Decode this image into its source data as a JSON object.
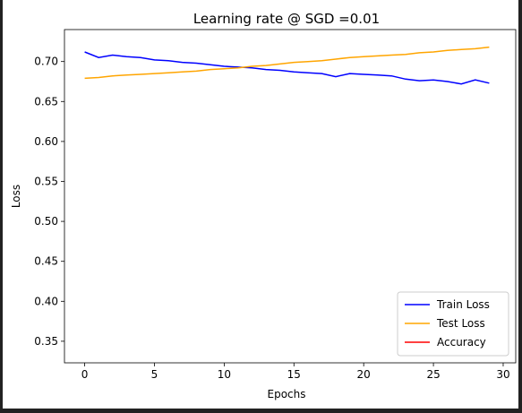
{
  "chart_data": {
    "type": "line",
    "title": "Learning rate @ SGD  =0.01",
    "x_label": "Epochs",
    "y_label": "Loss",
    "x": [
      0,
      1,
      2,
      3,
      4,
      5,
      6,
      7,
      8,
      9,
      10,
      11,
      12,
      13,
      14,
      15,
      16,
      17,
      18,
      19,
      20,
      21,
      22,
      23,
      24,
      25,
      26,
      27,
      28,
      29
    ],
    "series": [
      {
        "name": "Train Loss",
        "color": "#0000ff",
        "values": [
          0.712,
          0.705,
          0.708,
          0.706,
          0.705,
          0.702,
          0.701,
          0.699,
          0.698,
          0.696,
          0.694,
          0.693,
          0.692,
          0.69,
          0.689,
          0.687,
          0.686,
          0.685,
          0.681,
          0.685,
          0.684,
          0.683,
          0.682,
          0.678,
          0.676,
          0.677,
          0.675,
          0.672,
          0.677,
          0.673
        ]
      },
      {
        "name": "Test Loss",
        "color": "#ffa500",
        "values": [
          0.679,
          0.68,
          0.682,
          0.683,
          0.684,
          0.685,
          0.686,
          0.687,
          0.688,
          0.69,
          0.691,
          0.692,
          0.694,
          0.695,
          0.697,
          0.699,
          0.7,
          0.701,
          0.703,
          0.705,
          0.706,
          0.707,
          0.708,
          0.709,
          0.711,
          0.712,
          0.714,
          0.715,
          0.716,
          0.718
        ]
      },
      {
        "name": "Accuracy",
        "color": "#ff0000",
        "values": [
          null,
          null,
          null,
          null,
          null,
          null,
          null,
          null,
          null,
          null,
          null,
          null,
          null,
          null,
          null,
          null,
          null,
          null,
          null,
          null,
          null,
          null,
          null,
          null,
          null,
          null,
          null,
          null,
          null,
          null
        ]
      }
    ],
    "xlim": [
      -1.45,
      30.9
    ],
    "ylim": [
      0.323,
      0.74
    ],
    "xticks": [
      0,
      5,
      10,
      15,
      20,
      25,
      30
    ],
    "yticks": [
      {
        "value": 0.35,
        "label": "0.35"
      },
      {
        "value": 0.4,
        "label": "0.40"
      },
      {
        "value": 0.45,
        "label": "0.45"
      },
      {
        "value": 0.5,
        "label": "0.50"
      },
      {
        "value": 0.55,
        "label": "0.55"
      },
      {
        "value": 0.6,
        "label": "0.60"
      },
      {
        "value": 0.65,
        "label": "0.65"
      },
      {
        "value": 0.7,
        "label": "0.70"
      }
    ],
    "legend": "lower right"
  }
}
